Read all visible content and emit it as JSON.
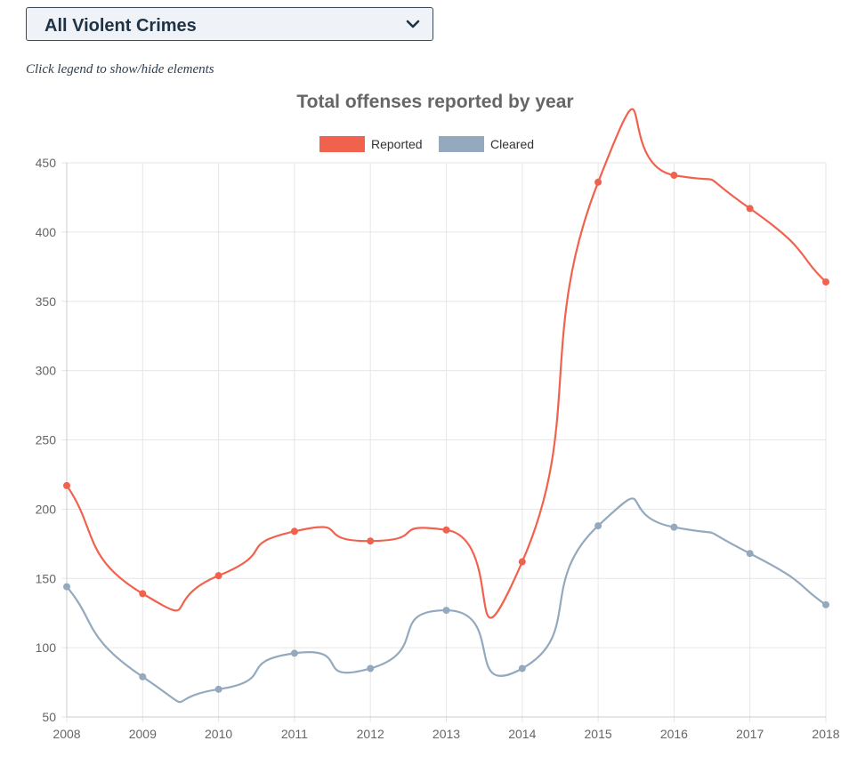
{
  "filter": {
    "selected": "All Violent Crimes",
    "icon": "chevron-down-icon"
  },
  "hint": "Click legend to show/hide elements",
  "chart_data": {
    "type": "line",
    "title": "Total offenses reported by year",
    "xlabel": "",
    "ylabel": "",
    "categories": [
      "2008",
      "2009",
      "2010",
      "2011",
      "2012",
      "2013",
      "2014",
      "2015",
      "2016",
      "2017",
      "2018"
    ],
    "ylim": [
      50,
      450
    ],
    "yticks": [
      50,
      100,
      150,
      200,
      250,
      300,
      350,
      400,
      450
    ],
    "grid": true,
    "legend_position": "top",
    "series": [
      {
        "name": "Reported",
        "color": "#f1624e",
        "values": [
          217,
          139,
          152,
          184,
          177,
          185,
          162,
          436,
          441,
          417,
          364
        ]
      },
      {
        "name": "Cleared",
        "color": "#94a9bd",
        "values": [
          144,
          79,
          70,
          96,
          85,
          127,
          85,
          188,
          187,
          168,
          131
        ]
      }
    ]
  }
}
